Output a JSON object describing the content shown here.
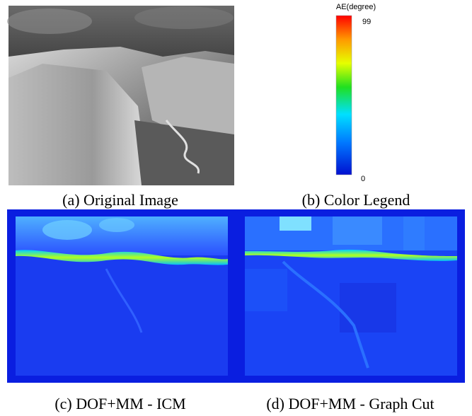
{
  "panels": [
    {
      "caption": "(a) Original Image"
    },
    {
      "caption": "(b) Color Legend",
      "legend": {
        "title": "AE(degree)",
        "max": 99,
        "min": 0
      }
    },
    {
      "caption": "(c) DOF+MM - ICM"
    },
    {
      "caption": "(d) DOF+MM - Graph Cut"
    }
  ]
}
